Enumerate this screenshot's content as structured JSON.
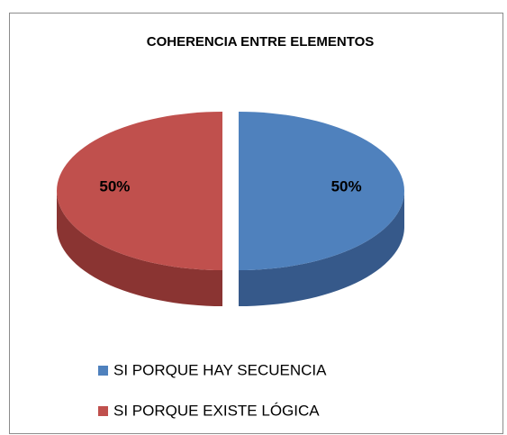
{
  "chart_data": {
    "type": "pie",
    "title": "COHERENCIA ENTRE ELEMENTOS",
    "categories": [
      "SI PORQUE HAY SECUENCIA",
      "SI PORQUE EXISTE LÓGICA"
    ],
    "values": [
      50,
      50
    ],
    "value_labels": [
      "50%",
      "50%"
    ],
    "colors": [
      "#4f81bd",
      "#c0504d"
    ],
    "side_colors": [
      "#36598a",
      "#8a3432"
    ],
    "legend": "bottom"
  }
}
